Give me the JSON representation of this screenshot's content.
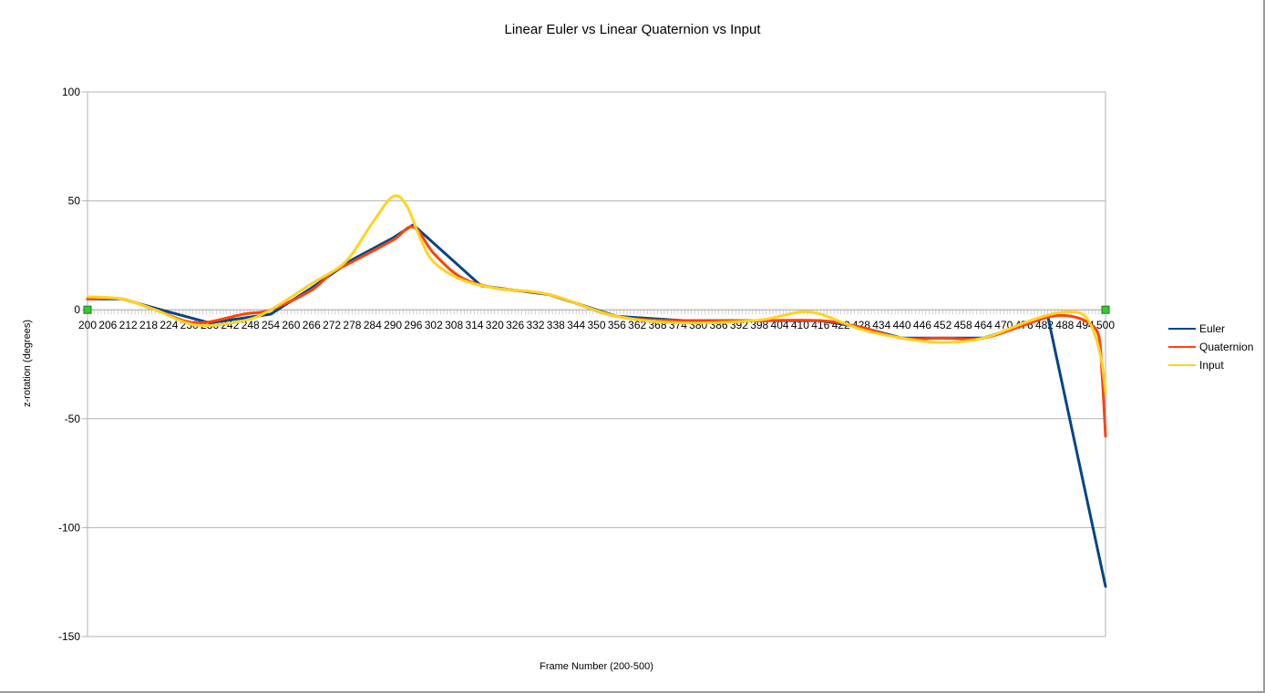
{
  "chart_data": {
    "type": "line",
    "title": "Linear Euler vs Linear Quaternion vs Input",
    "xlabel": "Frame Number (200-500)",
    "ylabel": "z-rotation (degrees)",
    "xlim": [
      200,
      500
    ],
    "ylim": [
      -150,
      100
    ],
    "y_ticks": [
      100,
      50,
      0,
      -50,
      -100,
      -150
    ],
    "x_tick_labels": [
      "200",
      "206",
      "212",
      "218",
      "224",
      "230",
      "236",
      "242",
      "248",
      "254",
      "260",
      "266",
      "272",
      "278",
      "284",
      "290",
      "296",
      "302",
      "308",
      "314",
      "320",
      "326",
      "332",
      "338",
      "344",
      "350",
      "356",
      "362",
      "368",
      "374",
      "380",
      "386",
      "392",
      "398",
      "404",
      "410",
      "416",
      "422",
      "428",
      "434",
      "440",
      "446",
      "452",
      "458",
      "464",
      "470",
      "476",
      "482",
      "488",
      "494",
      "500"
    ],
    "grid": true,
    "legend_position": "right",
    "series": [
      {
        "name": "Euler",
        "color": "#004586",
        "x": [
          200,
          210,
          224,
          236,
          254,
          266,
          278,
          290,
          296,
          316,
          336,
          356,
          376,
          396,
          416,
          428,
          440,
          452,
          464,
          476,
          483,
          500
        ],
        "y": [
          5,
          5,
          -1,
          -6,
          -2,
          10,
          23,
          33,
          39,
          11,
          7,
          -3,
          -5,
          -5,
          -5,
          -8,
          -13,
          -13,
          -13,
          -7,
          -3,
          -127
        ]
      },
      {
        "name": "Quaternion",
        "color": "#ff420e",
        "x": [
          200,
          210,
          220,
          232,
          246,
          254,
          266,
          272,
          278,
          290,
          296,
          302,
          310,
          320,
          336,
          356,
          376,
          396,
          416,
          428,
          440,
          452,
          464,
          476,
          484,
          490,
          495,
          498,
          499,
          500
        ],
        "y": [
          5,
          5,
          0,
          -6,
          -2,
          0,
          9,
          17,
          22,
          32,
          38,
          26,
          15,
          10,
          7,
          -3,
          -5,
          -5,
          -5,
          -8,
          -13,
          -13,
          -13,
          -7,
          -3,
          -3,
          -6,
          -12,
          -30,
          -58
        ]
      },
      {
        "name": "Input",
        "color": "#ffd320",
        "x": [
          200,
          210,
          220,
          232,
          246,
          254,
          266,
          276,
          284,
          290,
          294,
          298,
          302,
          310,
          320,
          336,
          356,
          376,
          396,
          404,
          410,
          416,
          428,
          440,
          452,
          464,
          476,
          484,
          490,
          494,
          497,
          499,
          500
        ],
        "y": [
          6,
          5,
          0,
          -7,
          -5,
          0,
          12,
          22,
          40,
          52,
          48,
          33,
          22,
          14,
          10,
          7,
          -3,
          -6,
          -5,
          -3,
          -1,
          -2,
          -9,
          -13,
          -15,
          -13,
          -6,
          -2,
          -1,
          -3,
          -12,
          -25,
          -38
        ]
      }
    ],
    "markers": [
      {
        "x": 200,
        "y": 0,
        "color": "#33cc33"
      },
      {
        "x": 500,
        "y": 0,
        "color": "#33cc33"
      }
    ]
  }
}
